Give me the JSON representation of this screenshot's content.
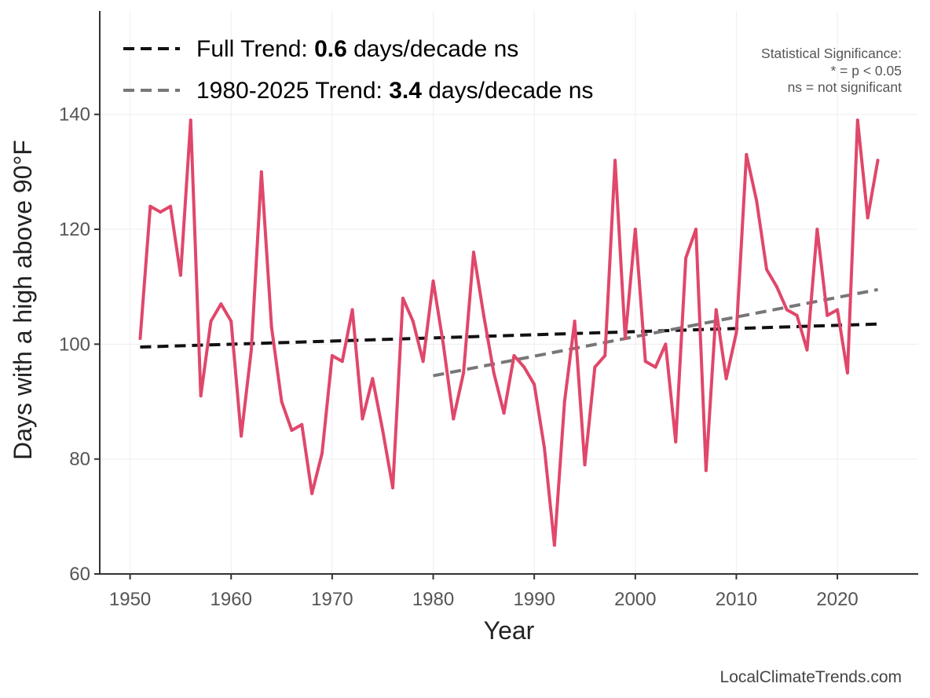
{
  "chart_data": {
    "type": "line",
    "title": "",
    "xlabel": "Year",
    "ylabel": "Days with a high above 90°F",
    "xlim": [
      1947,
      2028
    ],
    "ylim": [
      60,
      158
    ],
    "xticks": [
      1950,
      1960,
      1970,
      1980,
      1990,
      2000,
      2010,
      2020
    ],
    "yticks": [
      60,
      80,
      100,
      120,
      140
    ],
    "x_tick_labels": [
      "1950",
      "1960",
      "1970",
      "1980",
      "1990",
      "2000",
      "2010",
      "2020"
    ],
    "y_tick_labels": [
      "60",
      "80",
      "100",
      "120",
      "140"
    ],
    "grid": true,
    "series": [
      {
        "name": "Days with a high above 90°F",
        "color": "#e0476b",
        "x": [
          1951,
          1952,
          1953,
          1954,
          1955,
          1956,
          1957,
          1958,
          1959,
          1960,
          1961,
          1962,
          1963,
          1964,
          1965,
          1966,
          1967,
          1968,
          1969,
          1970,
          1971,
          1972,
          1973,
          1974,
          1975,
          1976,
          1977,
          1978,
          1979,
          1980,
          1981,
          1982,
          1983,
          1984,
          1985,
          1986,
          1987,
          1988,
          1989,
          1990,
          1991,
          1992,
          1993,
          1994,
          1995,
          1996,
          1997,
          1998,
          1999,
          2000,
          2001,
          2002,
          2003,
          2004,
          2005,
          2006,
          2007,
          2008,
          2009,
          2010,
          2011,
          2012,
          2013,
          2014,
          2015,
          2016,
          2017,
          2018,
          2019,
          2020,
          2021,
          2022,
          2023,
          2024
        ],
        "values": [
          101,
          124,
          123,
          124,
          112,
          139,
          91,
          104,
          107,
          104,
          84,
          99,
          130,
          103,
          90,
          85,
          86,
          74,
          81,
          98,
          97,
          106,
          87,
          94,
          85,
          75,
          108,
          104,
          97,
          111,
          100,
          87,
          95,
          116,
          105,
          95,
          88,
          98,
          96,
          93,
          82,
          65,
          90,
          104,
          79,
          96,
          98,
          132,
          101,
          120,
          97,
          96,
          100,
          83,
          115,
          120,
          78,
          106,
          94,
          102,
          133,
          125,
          113,
          110,
          106,
          105,
          99,
          120,
          105,
          106,
          95,
          139,
          122,
          132
        ]
      }
    ],
    "trends": [
      {
        "name": "Full Trend",
        "color": "#111111",
        "x": [
          1951,
          2024
        ],
        "values": [
          99.5,
          103.5
        ],
        "label_prefix": "Full Trend: ",
        "label_value": "0.6",
        "label_suffix": " days/decade ns"
      },
      {
        "name": "1980-2025 Trend",
        "color": "#777777",
        "x": [
          1980,
          2024
        ],
        "values": [
          94.5,
          109.5
        ],
        "label_prefix": "1980-2025 Trend: ",
        "label_value": "3.4",
        "label_suffix": " days/decade ns"
      }
    ],
    "legend_position": "top-left",
    "annotations": {
      "significance_title": "Statistical Significance:",
      "significance_line1": "* = p < 0.05",
      "significance_line2": "ns = not significant",
      "credit": "LocalClimateTrends.com"
    }
  }
}
